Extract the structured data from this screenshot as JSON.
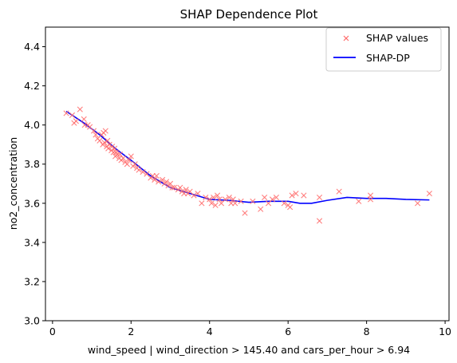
{
  "chart_data": {
    "type": "scatter",
    "title": "SHAP Dependence Plot",
    "xlabel": "wind_speed | wind_direction > 145.40 and cars_per_hour > 6.94",
    "ylabel": "no2_concentration",
    "xlim": [
      -0.18,
      10.1
    ],
    "ylim": [
      3.0,
      4.5
    ],
    "x_ticks": [
      0,
      2,
      4,
      6,
      8,
      10
    ],
    "x_tick_labels": [
      "0",
      "2",
      "4",
      "6",
      "8",
      "10"
    ],
    "y_ticks": [
      3.0,
      3.2,
      3.4,
      3.6,
      3.8,
      4.0,
      4.2,
      4.4
    ],
    "y_tick_labels": [
      "3.0",
      "3.2",
      "3.4",
      "3.6",
      "3.8",
      "4.0",
      "4.2",
      "4.4"
    ],
    "grid": false,
    "legend_position": "top-right",
    "legend": [
      {
        "label": "SHAP values",
        "marker": "x",
        "color": "#ff6b6b"
      },
      {
        "label": "SHAP-DP",
        "marker": "line",
        "color": "#0000ff"
      }
    ],
    "series": [
      {
        "name": "SHAP values",
        "kind": "scatter",
        "marker": "x",
        "color": "#ff6b6b",
        "points": [
          [
            0.35,
            4.06
          ],
          [
            0.5,
            4.05
          ],
          [
            0.55,
            4.01
          ],
          [
            0.6,
            4.02
          ],
          [
            0.7,
            4.08
          ],
          [
            0.8,
            4.03
          ],
          [
            0.82,
            4.0
          ],
          [
            0.9,
            4.0
          ],
          [
            0.95,
            3.99
          ],
          [
            1.05,
            3.97
          ],
          [
            1.1,
            3.95
          ],
          [
            1.15,
            3.93
          ],
          [
            1.2,
            3.92
          ],
          [
            1.25,
            3.95
          ],
          [
            1.28,
            3.9
          ],
          [
            1.3,
            3.96
          ],
          [
            1.32,
            3.91
          ],
          [
            1.35,
            3.97
          ],
          [
            1.38,
            3.89
          ],
          [
            1.4,
            3.92
          ],
          [
            1.42,
            3.88
          ],
          [
            1.45,
            3.9
          ],
          [
            1.5,
            3.87
          ],
          [
            1.52,
            3.89
          ],
          [
            1.55,
            3.86
          ],
          [
            1.58,
            3.88
          ],
          [
            1.6,
            3.84
          ],
          [
            1.62,
            3.86
          ],
          [
            1.65,
            3.85
          ],
          [
            1.7,
            3.83
          ],
          [
            1.72,
            3.85
          ],
          [
            1.75,
            3.82
          ],
          [
            1.8,
            3.83
          ],
          [
            1.85,
            3.81
          ],
          [
            1.9,
            3.8
          ],
          [
            1.95,
            3.82
          ],
          [
            2.0,
            3.84
          ],
          [
            2.05,
            3.79
          ],
          [
            2.1,
            3.8
          ],
          [
            2.15,
            3.78
          ],
          [
            2.2,
            3.77
          ],
          [
            2.3,
            3.76
          ],
          [
            2.4,
            3.75
          ],
          [
            2.5,
            3.73
          ],
          [
            2.55,
            3.74
          ],
          [
            2.6,
            3.72
          ],
          [
            2.65,
            3.74
          ],
          [
            2.7,
            3.71
          ],
          [
            2.8,
            3.72
          ],
          [
            2.85,
            3.7
          ],
          [
            2.9,
            3.71
          ],
          [
            2.95,
            3.69
          ],
          [
            3.0,
            3.7
          ],
          [
            3.05,
            3.68
          ],
          [
            3.1,
            3.68
          ],
          [
            3.2,
            3.67
          ],
          [
            3.25,
            3.68
          ],
          [
            3.3,
            3.66
          ],
          [
            3.35,
            3.65
          ],
          [
            3.4,
            3.67
          ],
          [
            3.45,
            3.65
          ],
          [
            3.5,
            3.66
          ],
          [
            3.6,
            3.64
          ],
          [
            3.7,
            3.65
          ],
          [
            3.8,
            3.6
          ],
          [
            3.9,
            3.63
          ],
          [
            4.0,
            3.62
          ],
          [
            4.05,
            3.6
          ],
          [
            4.1,
            3.63
          ],
          [
            4.15,
            3.59
          ],
          [
            4.2,
            3.64
          ],
          [
            4.25,
            3.62
          ],
          [
            4.3,
            3.6
          ],
          [
            4.4,
            3.62
          ],
          [
            4.5,
            3.63
          ],
          [
            4.55,
            3.6
          ],
          [
            4.6,
            3.62
          ],
          [
            4.65,
            3.6
          ],
          [
            4.8,
            3.61
          ],
          [
            4.9,
            3.55
          ],
          [
            5.1,
            3.61
          ],
          [
            5.3,
            3.57
          ],
          [
            5.4,
            3.63
          ],
          [
            5.5,
            3.6
          ],
          [
            5.6,
            3.62
          ],
          [
            5.7,
            3.63
          ],
          [
            5.9,
            3.6
          ],
          [
            6.0,
            3.59
          ],
          [
            6.05,
            3.58
          ],
          [
            6.1,
            3.64
          ],
          [
            6.2,
            3.65
          ],
          [
            6.4,
            3.64
          ],
          [
            6.8,
            3.63
          ],
          [
            6.8,
            3.51
          ],
          [
            7.3,
            3.66
          ],
          [
            7.8,
            3.61
          ],
          [
            8.1,
            3.62
          ],
          [
            8.1,
            3.64
          ],
          [
            9.3,
            3.6
          ],
          [
            9.6,
            3.65
          ]
        ]
      },
      {
        "name": "SHAP-DP",
        "kind": "line",
        "color": "#0000ff",
        "points": [
          [
            0.35,
            4.07
          ],
          [
            0.8,
            4.01
          ],
          [
            1.2,
            3.95
          ],
          [
            1.6,
            3.88
          ],
          [
            2.0,
            3.82
          ],
          [
            2.5,
            3.74
          ],
          [
            3.0,
            3.68
          ],
          [
            3.5,
            3.65
          ],
          [
            4.0,
            3.62
          ],
          [
            4.5,
            3.615
          ],
          [
            5.0,
            3.605
          ],
          [
            5.5,
            3.61
          ],
          [
            6.0,
            3.61
          ],
          [
            6.3,
            3.6
          ],
          [
            6.6,
            3.6
          ],
          [
            7.0,
            3.615
          ],
          [
            7.5,
            3.63
          ],
          [
            8.0,
            3.625
          ],
          [
            8.5,
            3.625
          ],
          [
            9.0,
            3.62
          ],
          [
            9.6,
            3.617
          ]
        ]
      }
    ]
  }
}
